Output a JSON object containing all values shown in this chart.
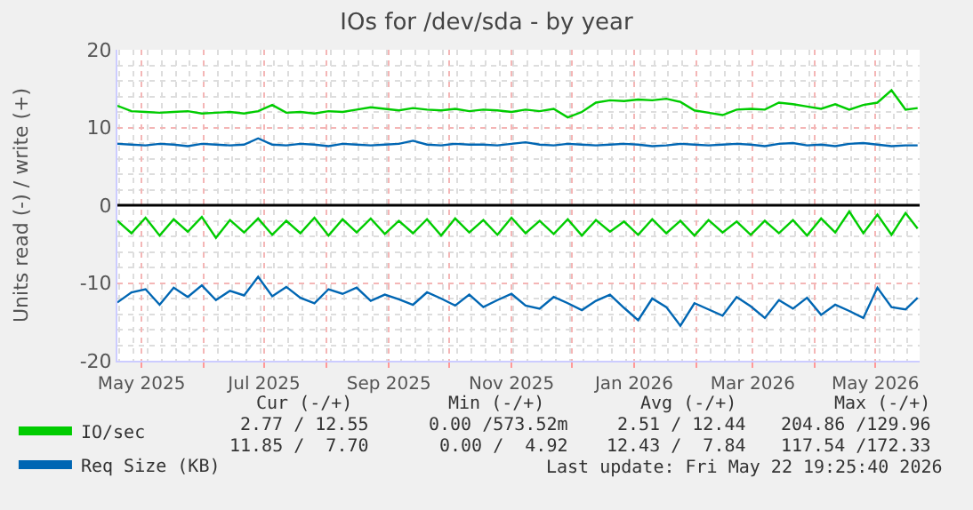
{
  "chart_data": {
    "type": "line",
    "title": "IOs for /dev/sda - by year",
    "ylabel": "Units read (-) / write (+)",
    "x": [
      "2025-04-19",
      "2025-04-26",
      "2025-05-03",
      "2025-05-10",
      "2025-05-17",
      "2025-05-24",
      "2025-05-31",
      "2025-06-07",
      "2025-06-14",
      "2025-06-21",
      "2025-06-28",
      "2025-07-05",
      "2025-07-12",
      "2025-07-19",
      "2025-07-26",
      "2025-08-02",
      "2025-08-09",
      "2025-08-16",
      "2025-08-23",
      "2025-08-30",
      "2025-09-06",
      "2025-09-13",
      "2025-09-20",
      "2025-09-27",
      "2025-10-04",
      "2025-10-11",
      "2025-10-18",
      "2025-10-25",
      "2025-11-01",
      "2025-11-08",
      "2025-11-15",
      "2025-11-22",
      "2025-11-29",
      "2025-12-06",
      "2025-12-13",
      "2025-12-20",
      "2025-12-27",
      "2026-01-03",
      "2026-01-10",
      "2026-01-17",
      "2026-01-24",
      "2026-01-31",
      "2026-02-07",
      "2026-02-14",
      "2026-02-21",
      "2026-02-28",
      "2026-03-07",
      "2026-03-14",
      "2026-03-21",
      "2026-03-28",
      "2026-04-04",
      "2026-04-11",
      "2026-04-18",
      "2026-04-25",
      "2026-05-02",
      "2026-05-09",
      "2026-05-16",
      "2026-05-22"
    ],
    "series": [
      {
        "name": "IO/sec",
        "color": "#00cc00",
        "values": [
          12.8,
          12.1,
          12.0,
          11.9,
          12.0,
          12.1,
          11.8,
          11.9,
          12.0,
          11.8,
          12.1,
          12.9,
          11.9,
          12.0,
          11.8,
          12.1,
          12.0,
          12.3,
          12.6,
          12.4,
          12.2,
          12.5,
          12.3,
          12.2,
          12.4,
          12.1,
          12.3,
          12.2,
          12.0,
          12.3,
          12.1,
          12.4,
          11.3,
          12.0,
          13.2,
          13.5,
          13.4,
          13.6,
          13.5,
          13.7,
          13.3,
          12.2,
          11.9,
          11.6,
          12.3,
          12.4,
          12.3,
          13.2,
          13.0,
          12.7,
          12.4,
          13.0,
          12.3,
          12.9,
          13.2,
          14.8,
          12.3,
          12.5
        ]
      },
      {
        "color": "#00cc00",
        "values": [
          -2.0,
          -3.6,
          -1.6,
          -3.9,
          -1.8,
          -3.4,
          -1.5,
          -4.2,
          -1.9,
          -3.5,
          -1.7,
          -3.8,
          -2.0,
          -3.6,
          -1.6,
          -3.9,
          -1.8,
          -3.5,
          -1.7,
          -3.7,
          -2.0,
          -3.6,
          -1.8,
          -3.9,
          -1.7,
          -3.5,
          -1.9,
          -3.8,
          -1.6,
          -3.6,
          -2.0,
          -3.7,
          -1.8,
          -3.9,
          -1.9,
          -3.4,
          -2.1,
          -3.8,
          -1.8,
          -3.6,
          -2.0,
          -3.9,
          -1.9,
          -3.5,
          -2.1,
          -3.8,
          -2.0,
          -3.6,
          -1.9,
          -3.9,
          -1.7,
          -3.5,
          -0.8,
          -3.6,
          -1.2,
          -3.8,
          -1.0,
          -3.0
        ]
      },
      {
        "name": "Req Size (KB)",
        "color": "#0066b3",
        "values": [
          7.9,
          7.8,
          7.7,
          7.9,
          7.8,
          7.6,
          7.9,
          7.8,
          7.7,
          7.8,
          8.6,
          7.8,
          7.7,
          7.9,
          7.8,
          7.6,
          7.9,
          7.8,
          7.7,
          7.8,
          7.9,
          8.3,
          7.8,
          7.7,
          7.9,
          7.8,
          7.8,
          7.7,
          7.9,
          8.1,
          7.8,
          7.7,
          7.9,
          7.8,
          7.7,
          7.8,
          7.9,
          7.8,
          7.6,
          7.7,
          7.9,
          7.8,
          7.7,
          7.8,
          7.9,
          7.8,
          7.6,
          7.9,
          8.0,
          7.7,
          7.8,
          7.6,
          7.9,
          8.0,
          7.8,
          7.6,
          7.7,
          7.7
        ]
      },
      {
        "color": "#0066b3",
        "values": [
          -12.5,
          -11.2,
          -10.8,
          -12.8,
          -10.6,
          -11.8,
          -10.3,
          -12.2,
          -11.0,
          -11.6,
          -9.2,
          -11.7,
          -10.5,
          -11.9,
          -12.6,
          -10.8,
          -11.4,
          -10.6,
          -12.3,
          -11.5,
          -12.1,
          -12.8,
          -11.2,
          -12.0,
          -12.9,
          -11.5,
          -13.1,
          -12.2,
          -11.4,
          -12.9,
          -13.3,
          -11.8,
          -12.6,
          -13.5,
          -12.3,
          -11.5,
          -13.2,
          -14.8,
          -12.0,
          -13.1,
          -15.5,
          -12.6,
          -13.4,
          -14.2,
          -11.8,
          -13.0,
          -14.5,
          -12.2,
          -13.3,
          -11.9,
          -14.1,
          -12.8,
          -13.6,
          -14.5,
          -10.6,
          -13.1,
          -13.4,
          -11.9
        ]
      }
    ],
    "xlim": [
      "2025-04-19",
      "2026-05-23"
    ],
    "xticks": [
      {
        "value": "2025-05-01",
        "label": "May 2025"
      },
      {
        "value": "2025-06-01",
        "label": null
      },
      {
        "value": "2025-07-01",
        "label": "Jul 2025"
      },
      {
        "value": "2025-08-01",
        "label": null
      },
      {
        "value": "2025-09-01",
        "label": "Sep 2025"
      },
      {
        "value": "2025-10-01",
        "label": null
      },
      {
        "value": "2025-11-01",
        "label": "Nov 2025"
      },
      {
        "value": "2025-12-01",
        "label": null
      },
      {
        "value": "2026-01-01",
        "label": "Jan 2026"
      },
      {
        "value": "2026-02-01",
        "label": null
      },
      {
        "value": "2026-03-01",
        "label": "Mar 2026"
      },
      {
        "value": "2026-04-01",
        "label": null
      },
      {
        "value": "2026-05-01",
        "label": "May 2026"
      }
    ],
    "ylim": [
      -20,
      20
    ],
    "yticks": [
      -20,
      -10,
      0,
      10,
      20
    ],
    "ref_lines": [
      {
        "axis": "y",
        "value": 0,
        "color": "#000000"
      }
    ],
    "grid": true,
    "legend": "bottom left",
    "line_style": "solid",
    "marker": "none",
    "annotations": [
      "Cur (-/+)",
      "Min (-/+)",
      "Avg (-/+)",
      "Max (-/+)",
      "2.77 / 12.55",
      "0.00 /573.52m",
      "2.51 / 12.44",
      "204.86 /129.96",
      "11.85 /  7.70",
      "0.00 /  4.92",
      "12.43 /  7.84",
      "117.54 /172.33",
      "Last update: Fri May 22 19:25:40 2026"
    ]
  }
}
